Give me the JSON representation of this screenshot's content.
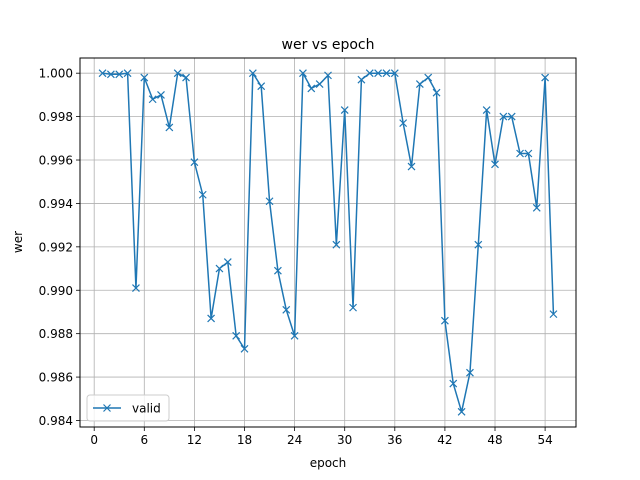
{
  "chart_data": {
    "type": "line",
    "title": "wer vs epoch",
    "xlabel": "epoch",
    "ylabel": "wer",
    "xlim": [
      -1.7,
      57.7
    ],
    "ylim": [
      0.9837,
      1.0007
    ],
    "xticks": [
      0,
      6,
      12,
      18,
      24,
      30,
      36,
      42,
      48,
      54
    ],
    "xtick_labels": [
      "0",
      "6",
      "12",
      "18",
      "24",
      "30",
      "36",
      "42",
      "48",
      "54"
    ],
    "yticks": [
      0.984,
      0.986,
      0.988,
      0.99,
      0.992,
      0.994,
      0.996,
      0.998,
      1.0
    ],
    "ytick_labels": [
      "0.984",
      "0.986",
      "0.988",
      "0.990",
      "0.992",
      "0.994",
      "0.996",
      "0.998",
      "1.000"
    ],
    "grid": true,
    "legend_position": "lower-left",
    "marker": "x",
    "series": [
      {
        "name": "valid",
        "color": "#1f77b4",
        "x": [
          1,
          2,
          3,
          4,
          5,
          6,
          7,
          8,
          9,
          10,
          11,
          12,
          13,
          14,
          15,
          16,
          17,
          18,
          19,
          20,
          21,
          22,
          23,
          24,
          25,
          26,
          27,
          28,
          29,
          30,
          31,
          32,
          33,
          34,
          35,
          36,
          37,
          38,
          39,
          40,
          41,
          42,
          43,
          44,
          45,
          46,
          47,
          48,
          49,
          50,
          51,
          52,
          53,
          54,
          55
        ],
        "values": [
          1.0,
          0.99995,
          0.99995,
          1.0,
          0.9901,
          0.9998,
          0.9988,
          0.999,
          0.9975,
          1.0,
          0.9998,
          0.9959,
          0.9944,
          0.9887,
          0.991,
          0.9913,
          0.9879,
          0.9873,
          1.0,
          0.9994,
          0.9941,
          0.9909,
          0.9891,
          0.9879,
          1.0,
          0.9993,
          0.9995,
          0.9999,
          0.9921,
          0.9983,
          0.9892,
          0.9997,
          1.0,
          1.0,
          1.0,
          1.0,
          0.9977,
          0.9957,
          0.9995,
          0.9998,
          0.9991,
          0.9886,
          0.9857,
          0.9844,
          0.9862,
          0.9921,
          0.9983,
          0.9958,
          0.998,
          0.998,
          0.9963,
          0.9963,
          0.9938,
          0.9998,
          0.9889
        ]
      }
    ]
  }
}
